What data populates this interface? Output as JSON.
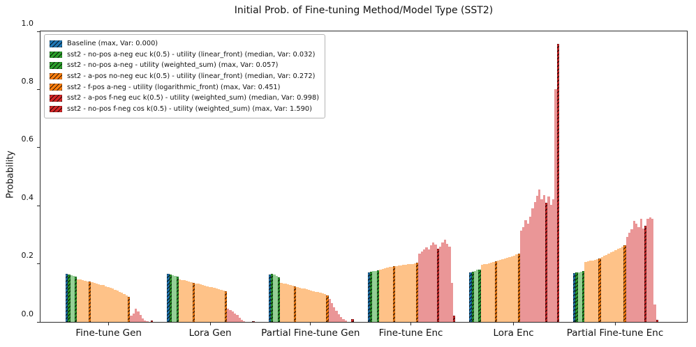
{
  "title": "Initial Prob. of Fine-tuning Method/Model Type (SST2)",
  "ylabel": "Probability",
  "yticks": [
    "0.0",
    "0.2",
    "0.4",
    "0.6",
    "0.8",
    "1.0"
  ],
  "colors": {
    "blue": "#1f77b4",
    "green": "#2ca02c",
    "green_light": "#95cf95",
    "orange": "#ff7f0e",
    "orange_light": "#fec288",
    "red": "#d62728",
    "red_light": "#ea9697",
    "axis": "#2a2a2a",
    "hatch": "#000000"
  },
  "legend": [
    {
      "color": "blue",
      "label": "Baseline (max, Var: 0.000)"
    },
    {
      "color": "green",
      "label": "sst2 - no-pos a-neg euc  k(0.5) - utility (linear_front) (median, Var: 0.032)"
    },
    {
      "color": "green",
      "label": "sst2 - no-pos a-neg - utility (weighted_sum) (max, Var: 0.057)"
    },
    {
      "color": "orange",
      "label": "sst2 - a-pos no-neg euc  k(0.5) - utility (linear_front) (median, Var: 0.272)"
    },
    {
      "color": "orange",
      "label": "sst2 - f-pos a-neg - utility (logarithmic_front) (max, Var: 0.451)"
    },
    {
      "color": "red",
      "label": "sst2 - a-pos f-neg euc  k(0.5) - utility (weighted_sum) (median, Var: 0.998)"
    },
    {
      "color": "red",
      "label": "sst2 - no-pos f-neg cos  k(0.5) - utility (weighted_sum) (max, Var: 1.590)"
    }
  ],
  "chart_data": {
    "type": "bar",
    "title": "Initial Prob. of Fine-tuning Method/Model Type (SST2)",
    "xlabel": "",
    "ylabel": "Probability",
    "ylim": [
      0,
      1.0
    ],
    "grid": false,
    "legend_position": "upper-left",
    "bar_color_key": {
      "b": "blue hatched (Baseline)",
      "g": "green hatched (highlighted sst2 a-neg configs)",
      "lg": "green light (other configs)",
      "o": "orange hatched (highlighted sst2 pos/neg configs)",
      "lo": "orange light (other configs)",
      "r": "red hatched (highlighted f-neg configs)",
      "lr": "red light (other configs)"
    },
    "groups": [
      {
        "label": "Fine-tune Gen",
        "bars": [
          [
            "b",
            0.165,
            1
          ],
          [
            "g",
            0.163,
            1
          ],
          [
            "lg",
            0.161,
            0
          ],
          [
            "lg",
            0.159,
            0
          ],
          [
            "g",
            0.156,
            1
          ],
          [
            "lo",
            0.147,
            0
          ],
          [
            "lo",
            0.146,
            0
          ],
          [
            "lo",
            0.144,
            0
          ],
          [
            "lo",
            0.142,
            0
          ],
          [
            "lo",
            0.14,
            0
          ],
          [
            "o",
            0.138,
            1
          ],
          [
            "lo",
            0.136,
            0
          ],
          [
            "lo",
            0.134,
            0
          ],
          [
            "lo",
            0.132,
            0
          ],
          [
            "lo",
            0.13,
            0
          ],
          [
            "lo",
            0.128,
            0
          ],
          [
            "lo",
            0.126,
            0
          ],
          [
            "lo",
            0.123,
            0
          ],
          [
            "lo",
            0.12,
            0
          ],
          [
            "lo",
            0.117,
            0
          ],
          [
            "lo",
            0.114,
            0
          ],
          [
            "lo",
            0.111,
            0
          ],
          [
            "lo",
            0.108,
            0
          ],
          [
            "lo",
            0.104,
            0
          ],
          [
            "lo",
            0.1,
            0
          ],
          [
            "lo",
            0.096,
            0
          ],
          [
            "lo",
            0.091,
            0
          ],
          [
            "o",
            0.086,
            1
          ],
          [
            "lr",
            0.021,
            0
          ],
          [
            "lr",
            0.029,
            0
          ],
          [
            "lr",
            0.046,
            0
          ],
          [
            "lr",
            0.037,
            0
          ],
          [
            "lr",
            0.024,
            0
          ],
          [
            "lr",
            0.013,
            0
          ],
          [
            "lr",
            0.006,
            0
          ],
          [
            "lr",
            0.002,
            0
          ],
          [
            "lr",
            0.0,
            0
          ],
          [
            "r",
            0.005,
            1
          ]
        ]
      },
      {
        "label": "Lora Gen",
        "bars": [
          [
            "b",
            0.166,
            1
          ],
          [
            "g",
            0.164,
            1
          ],
          [
            "lg",
            0.161,
            0
          ],
          [
            "lg",
            0.158,
            0
          ],
          [
            "g",
            0.155,
            1
          ],
          [
            "lo",
            0.146,
            0
          ],
          [
            "lo",
            0.145,
            0
          ],
          [
            "lo",
            0.143,
            0
          ],
          [
            "lo",
            0.141,
            0
          ],
          [
            "lo",
            0.139,
            0
          ],
          [
            "lo",
            0.137,
            0
          ],
          [
            "o",
            0.135,
            1
          ],
          [
            "lo",
            0.133,
            0
          ],
          [
            "lo",
            0.131,
            0
          ],
          [
            "lo",
            0.129,
            0
          ],
          [
            "lo",
            0.127,
            0
          ],
          [
            "lo",
            0.125,
            0
          ],
          [
            "lo",
            0.123,
            0
          ],
          [
            "lo",
            0.121,
            0
          ],
          [
            "lo",
            0.119,
            0
          ],
          [
            "lo",
            0.117,
            0
          ],
          [
            "lo",
            0.115,
            0
          ],
          [
            "lo",
            0.113,
            0
          ],
          [
            "lo",
            0.111,
            0
          ],
          [
            "lo",
            0.109,
            0
          ],
          [
            "o",
            0.106,
            1
          ],
          [
            "lr",
            0.045,
            0
          ],
          [
            "lr",
            0.041,
            0
          ],
          [
            "lr",
            0.036,
            0
          ],
          [
            "lr",
            0.03,
            0
          ],
          [
            "lr",
            0.023,
            0
          ],
          [
            "lr",
            0.015,
            0
          ],
          [
            "lr",
            0.008,
            0
          ],
          [
            "lr",
            0.003,
            0
          ],
          [
            "lr",
            0.0,
            0
          ],
          [
            "lr",
            0.0,
            0
          ],
          [
            "lr",
            0.0,
            0
          ],
          [
            "r",
            0.003,
            1
          ]
        ]
      },
      {
        "label": "Partial Fine-tune Gen",
        "bars": [
          [
            "b",
            0.164,
            1
          ],
          [
            "g",
            0.166,
            1
          ],
          [
            "lg",
            0.162,
            0
          ],
          [
            "lg",
            0.159,
            0
          ],
          [
            "g",
            0.153,
            1
          ],
          [
            "lo",
            0.134,
            0
          ],
          [
            "lo",
            0.133,
            0
          ],
          [
            "lo",
            0.131,
            0
          ],
          [
            "lo",
            0.129,
            0
          ],
          [
            "lo",
            0.127,
            0
          ],
          [
            "lo",
            0.125,
            0
          ],
          [
            "o",
            0.122,
            1
          ],
          [
            "lo",
            0.12,
            0
          ],
          [
            "lo",
            0.118,
            0
          ],
          [
            "lo",
            0.116,
            0
          ],
          [
            "lo",
            0.114,
            0
          ],
          [
            "lo",
            0.112,
            0
          ],
          [
            "lo",
            0.11,
            0
          ],
          [
            "lo",
            0.108,
            0
          ],
          [
            "lo",
            0.106,
            0
          ],
          [
            "lo",
            0.104,
            0
          ],
          [
            "lo",
            0.102,
            0
          ],
          [
            "lo",
            0.1,
            0
          ],
          [
            "lo",
            0.098,
            0
          ],
          [
            "lo",
            0.096,
            0
          ],
          [
            "o",
            0.092,
            1
          ],
          [
            "lr",
            0.08,
            0
          ],
          [
            "lr",
            0.065,
            0
          ],
          [
            "lr",
            0.05,
            0
          ],
          [
            "lr",
            0.038,
            0
          ],
          [
            "lr",
            0.027,
            0
          ],
          [
            "lr",
            0.018,
            0
          ],
          [
            "lr",
            0.01,
            0
          ],
          [
            "lr",
            0.004,
            0
          ],
          [
            "lr",
            0.0,
            0
          ],
          [
            "lr",
            0.0,
            0
          ],
          [
            "r",
            0.01,
            1
          ]
        ]
      },
      {
        "label": "Fine-tune Enc",
        "bars": [
          [
            "b",
            0.17,
            1
          ],
          [
            "g",
            0.172,
            1
          ],
          [
            "lg",
            0.174,
            0
          ],
          [
            "lg",
            0.176,
            0
          ],
          [
            "g",
            0.178,
            1
          ],
          [
            "lo",
            0.181,
            0
          ],
          [
            "lo",
            0.183,
            0
          ],
          [
            "lo",
            0.185,
            0
          ],
          [
            "lo",
            0.187,
            0
          ],
          [
            "lo",
            0.189,
            0
          ],
          [
            "lo",
            0.19,
            0
          ],
          [
            "o",
            0.192,
            1
          ],
          [
            "lo",
            0.193,
            0
          ],
          [
            "lo",
            0.194,
            0
          ],
          [
            "lo",
            0.195,
            0
          ],
          [
            "lo",
            0.196,
            0
          ],
          [
            "lo",
            0.197,
            0
          ],
          [
            "lo",
            0.198,
            0
          ],
          [
            "lo",
            0.199,
            0
          ],
          [
            "lo",
            0.2,
            0
          ],
          [
            "lo",
            0.202,
            0
          ],
          [
            "o",
            0.204,
            1
          ],
          [
            "lr",
            0.235,
            0
          ],
          [
            "lr",
            0.243,
            0
          ],
          [
            "lr",
            0.25,
            0
          ],
          [
            "lr",
            0.256,
            0
          ],
          [
            "lr",
            0.249,
            0
          ],
          [
            "lr",
            0.263,
            0
          ],
          [
            "lr",
            0.274,
            0
          ],
          [
            "lr",
            0.266,
            0
          ],
          [
            "r",
            0.251,
            1
          ],
          [
            "lr",
            0.26,
            0
          ],
          [
            "lr",
            0.273,
            0
          ],
          [
            "lr",
            0.284,
            0
          ],
          [
            "lr",
            0.268,
            0
          ],
          [
            "lr",
            0.259,
            0
          ],
          [
            "lr",
            0.134,
            0
          ],
          [
            "r",
            0.022,
            1
          ]
        ]
      },
      {
        "label": "Lora Enc",
        "bars": [
          [
            "b",
            0.17,
            1
          ],
          [
            "g",
            0.173,
            1
          ],
          [
            "lg",
            0.176,
            0
          ],
          [
            "lg",
            0.179,
            0
          ],
          [
            "g",
            0.181,
            1
          ],
          [
            "lo",
            0.196,
            0
          ],
          [
            "lo",
            0.198,
            0
          ],
          [
            "lo",
            0.2,
            0
          ],
          [
            "lo",
            0.202,
            0
          ],
          [
            "lo",
            0.204,
            0
          ],
          [
            "lo",
            0.206,
            0
          ],
          [
            "o",
            0.208,
            1
          ],
          [
            "lo",
            0.211,
            0
          ],
          [
            "lo",
            0.214,
            0
          ],
          [
            "lo",
            0.217,
            0
          ],
          [
            "lo",
            0.219,
            0
          ],
          [
            "lo",
            0.221,
            0
          ],
          [
            "lo",
            0.223,
            0
          ],
          [
            "lo",
            0.226,
            0
          ],
          [
            "lo",
            0.229,
            0
          ],
          [
            "lo",
            0.232,
            0
          ],
          [
            "o",
            0.236,
            1
          ],
          [
            "lr",
            0.313,
            0
          ],
          [
            "lr",
            0.326,
            0
          ],
          [
            "lr",
            0.35,
            0
          ],
          [
            "lr",
            0.338,
            0
          ],
          [
            "lr",
            0.361,
            0
          ],
          [
            "lr",
            0.39,
            0
          ],
          [
            "lr",
            0.413,
            0
          ],
          [
            "lr",
            0.433,
            0
          ],
          [
            "lr",
            0.456,
            0
          ],
          [
            "lr",
            0.421,
            0
          ],
          [
            "lr",
            0.437,
            0
          ],
          [
            "r",
            0.41,
            1
          ],
          [
            "lr",
            0.431,
            0
          ],
          [
            "lr",
            0.402,
            0
          ],
          [
            "lr",
            0.421,
            0
          ],
          [
            "lr",
            0.8,
            0
          ],
          [
            "r",
            0.957,
            1
          ]
        ]
      },
      {
        "label": "Partial Fine-tune Enc",
        "bars": [
          [
            "b",
            0.168,
            1
          ],
          [
            "g",
            0.17,
            1
          ],
          [
            "lg",
            0.171,
            0
          ],
          [
            "lg",
            0.172,
            0
          ],
          [
            "g",
            0.174,
            1
          ],
          [
            "lo",
            0.206,
            0
          ],
          [
            "lo",
            0.208,
            0
          ],
          [
            "lo",
            0.21,
            0
          ],
          [
            "lo",
            0.212,
            0
          ],
          [
            "lo",
            0.214,
            0
          ],
          [
            "lo",
            0.216,
            0
          ],
          [
            "o",
            0.219,
            1
          ],
          [
            "lo",
            0.223,
            0
          ],
          [
            "lo",
            0.227,
            0
          ],
          [
            "lo",
            0.231,
            0
          ],
          [
            "lo",
            0.235,
            0
          ],
          [
            "lo",
            0.239,
            0
          ],
          [
            "lo",
            0.243,
            0
          ],
          [
            "lo",
            0.247,
            0
          ],
          [
            "lo",
            0.251,
            0
          ],
          [
            "lo",
            0.255,
            0
          ],
          [
            "lo",
            0.259,
            0
          ],
          [
            "o",
            0.265,
            1
          ],
          [
            "lr",
            0.293,
            0
          ],
          [
            "lr",
            0.306,
            0
          ],
          [
            "lr",
            0.318,
            0
          ],
          [
            "lr",
            0.347,
            0
          ],
          [
            "lr",
            0.337,
            0
          ],
          [
            "lr",
            0.325,
            0
          ],
          [
            "lr",
            0.354,
            0
          ],
          [
            "lr",
            0.321,
            0
          ],
          [
            "r",
            0.331,
            1
          ],
          [
            "lr",
            0.354,
            0
          ],
          [
            "lr",
            0.359,
            0
          ],
          [
            "lr",
            0.356,
            0
          ],
          [
            "lr",
            0.06,
            0
          ],
          [
            "r",
            0.007,
            1
          ]
        ]
      }
    ]
  }
}
